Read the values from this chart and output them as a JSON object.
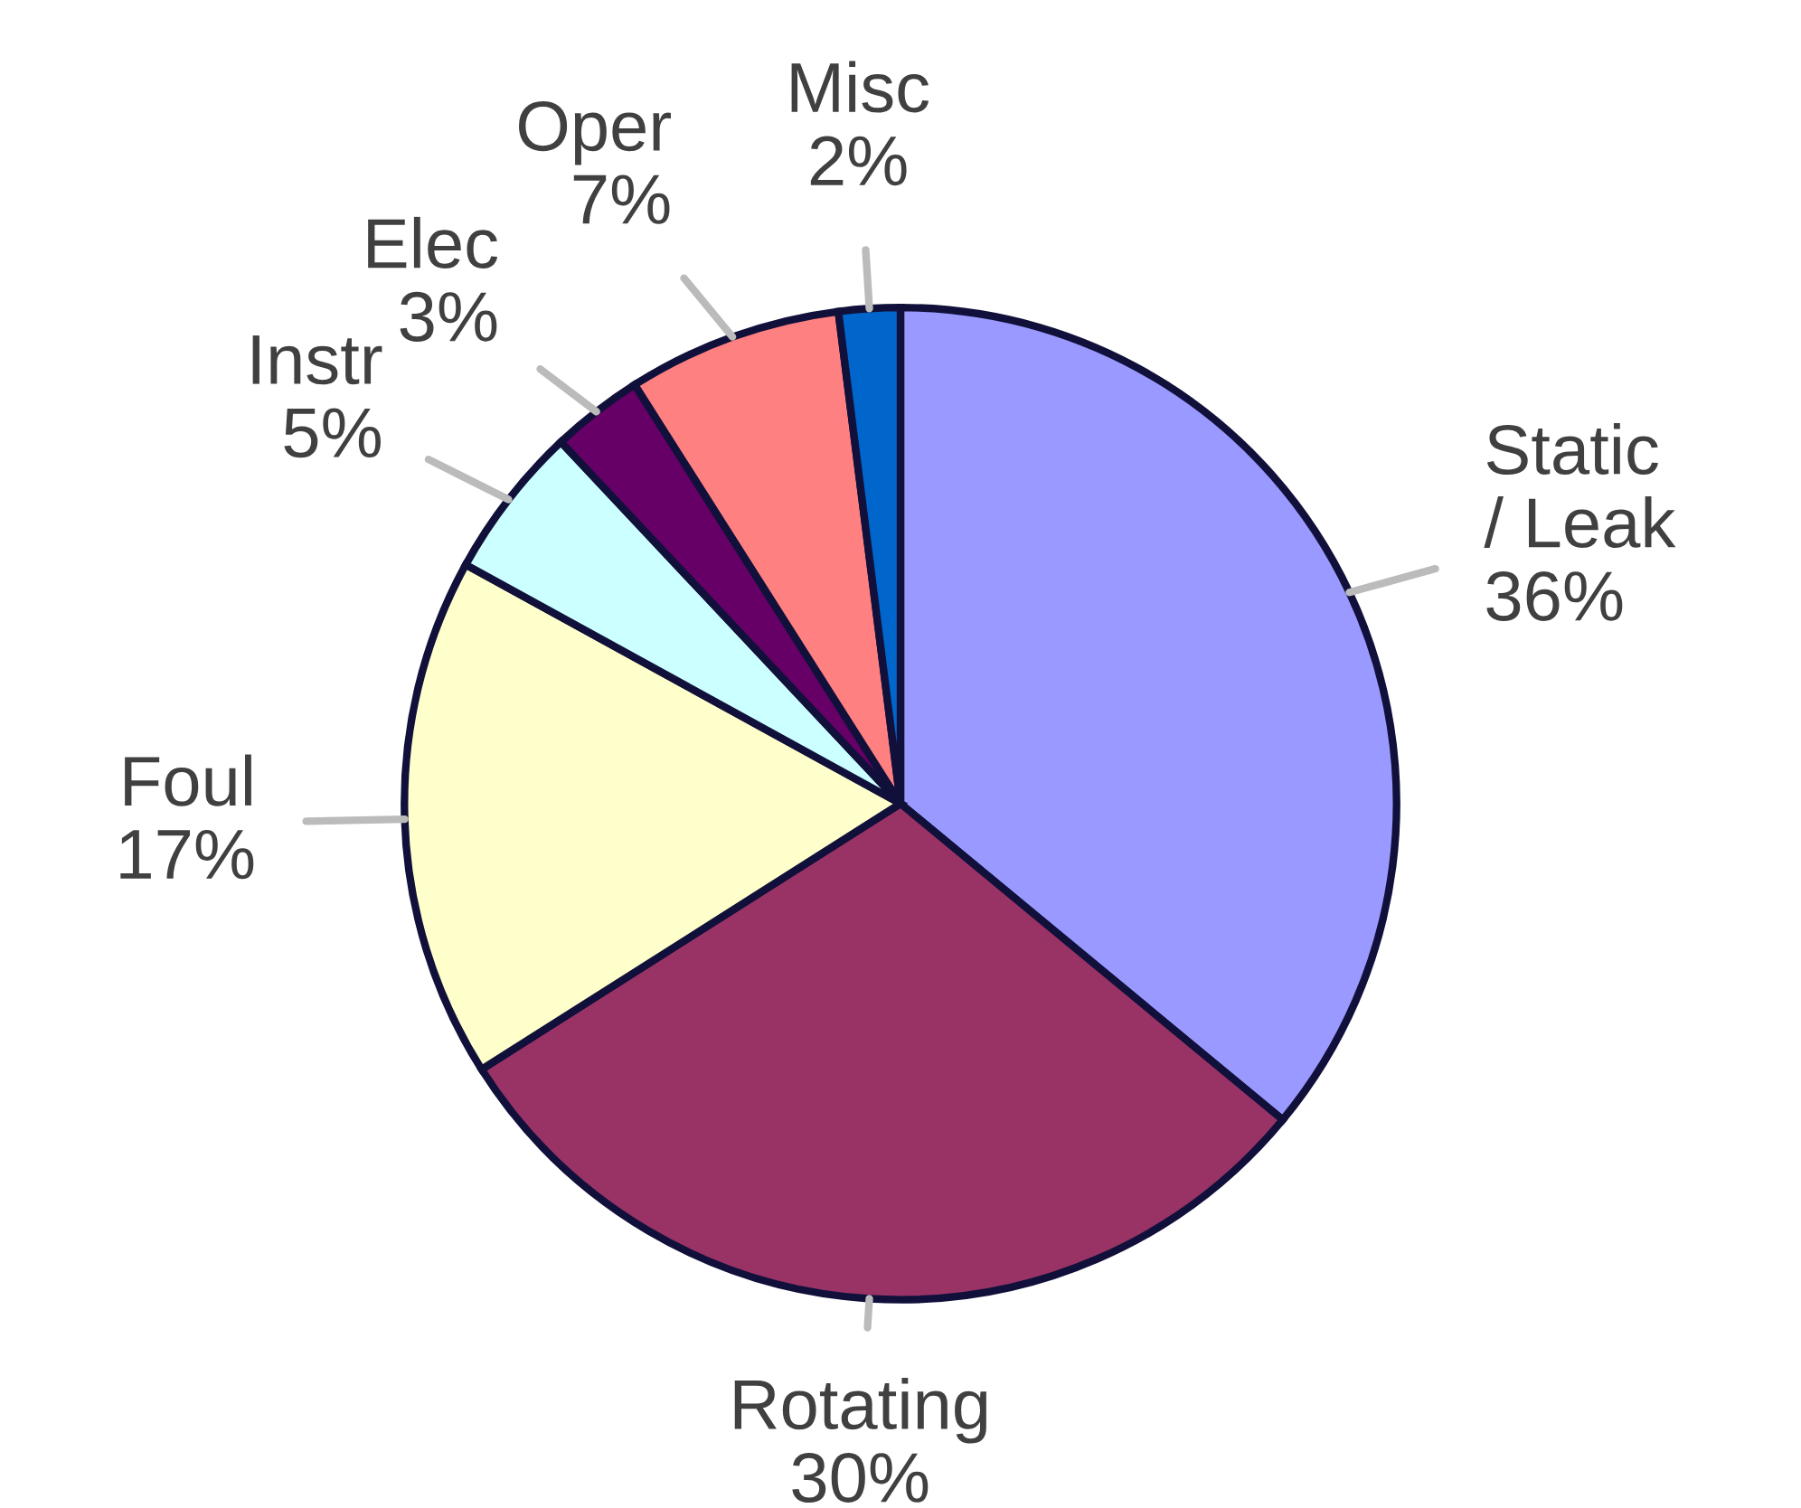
{
  "chart_data": {
    "type": "pie",
    "categories": [
      "Static / Leak",
      "Rotating",
      "Foul",
      "Instr",
      "Elec",
      "Oper",
      "Misc"
    ],
    "values": [
      36,
      30,
      17,
      5,
      3,
      7,
      2
    ],
    "value_labels": [
      "36%",
      "30%",
      "17%",
      "5%",
      "3%",
      "7%",
      "2%"
    ],
    "colors": [
      "#9999ff",
      "#993366",
      "#ffffcc",
      "#ccffff",
      "#660066",
      "#ff8080",
      "#0066cc"
    ],
    "legend": false
  }
}
